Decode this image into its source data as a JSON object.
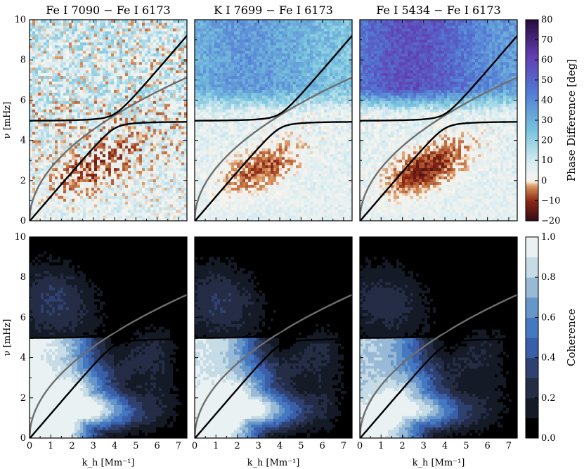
{
  "chart_data": {
    "type": "heatmap",
    "rows": [
      {
        "quantity": "phase_difference",
        "panels": [
          {
            "title": "Fe I 7090 − Fe I 6173",
            "mean_low_band": -8,
            "mean_high_band": 4
          },
          {
            "title": "K I 7699 − Fe I 6173",
            "mean_low_band": -10,
            "mean_high_band": 30
          },
          {
            "title": "Fe I 5434 − Fe I 6173",
            "mean_low_band": -14,
            "mean_high_band": 50
          }
        ],
        "colorbar": {
          "label": "Phase Difference [deg]",
          "range": [
            -20,
            80
          ],
          "ticks": [
            "−20",
            "−10",
            "0",
            "10",
            "20",
            "30",
            "40",
            "50",
            "60",
            "70",
            "80"
          ]
        }
      },
      {
        "quantity": "coherence",
        "panels": [
          {
            "title": "",
            "strength": 1.0
          },
          {
            "title": "",
            "strength": 0.95
          },
          {
            "title": "",
            "strength": 0.85
          }
        ],
        "colorbar": {
          "label": "Coherence",
          "range": [
            0,
            1
          ],
          "ticks": [
            "0.0",
            "0.2",
            "0.4",
            "0.6",
            "0.8",
            "1.0"
          ]
        }
      }
    ],
    "xlabel": "k_h [Mm⁻¹]",
    "ylabel": "ν [mHz]",
    "xlim": [
      0,
      7.4
    ],
    "ylim": [
      0,
      10
    ],
    "xticks": [
      0,
      1,
      2,
      3,
      4,
      5,
      6,
      7
    ],
    "yticks": [
      0,
      2,
      4,
      6,
      8,
      10
    ],
    "curves": [
      {
        "name": "f-mode (gray)",
        "color": "#6e6e6e",
        "formula": "nu = 2.62 * sqrt(k)"
      },
      {
        "name": "upper avoided-crossing branch",
        "color": "#000000",
        "cutoff_mHz": 4.95
      },
      {
        "name": "lower avoided-crossing branch",
        "color": "#000000",
        "cutoff_mHz": 4.95
      }
    ]
  }
}
